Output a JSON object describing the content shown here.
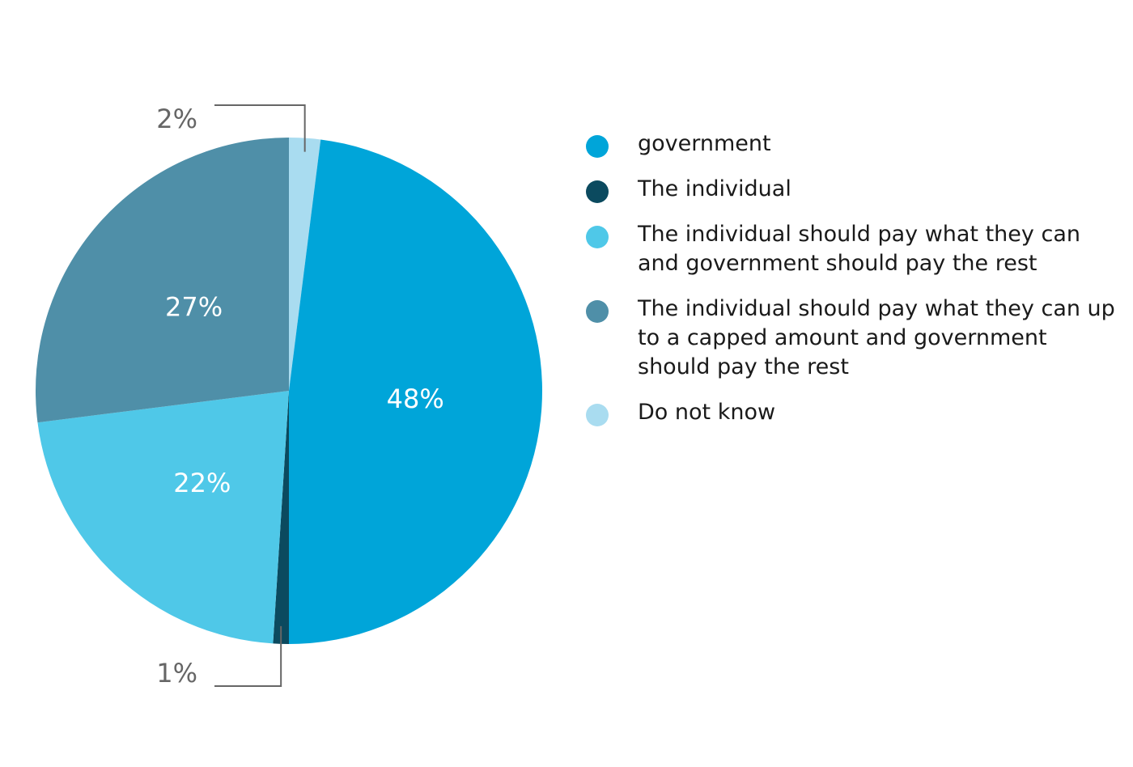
{
  "chart_data": {
    "type": "pie",
    "title": "",
    "start_angle_deg": 0,
    "direction": "clockwise",
    "slices": [
      {
        "label": "Do not know",
        "value": 2,
        "value_label": "2%",
        "color": "#a9dcf0",
        "label_placement": "outside-top"
      },
      {
        "label": "government",
        "value": 48,
        "value_label": "48%",
        "color": "#00a5d9",
        "label_placement": "inside"
      },
      {
        "label": "The individual",
        "value": 1,
        "value_label": "1%",
        "color": "#0b4a5f",
        "label_placement": "outside-bottom"
      },
      {
        "label": "The individual should pay what they can and government should pay the rest",
        "value": 22,
        "value_label": "22%",
        "color": "#4fc8e8",
        "label_placement": "inside"
      },
      {
        "label": "The individual should pay what they can up to a capped amount and government should pay the rest",
        "value": 27,
        "value_label": "27%",
        "color": "#4f8fa8",
        "label_placement": "inside"
      }
    ],
    "legend": {
      "placement": "right",
      "entries": [
        {
          "label": "government",
          "color": "#00a5d9"
        },
        {
          "label": "The individual",
          "color": "#0b4a5f"
        },
        {
          "label": "The individual should pay what they can and government should pay the rest",
          "color": "#4fc8e8"
        },
        {
          "label": "The individual should pay what they can up to a capped amount and government should pay the rest",
          "color": "#4f8fa8"
        },
        {
          "label": "Do not know",
          "color": "#a9dcf0"
        }
      ]
    },
    "inside_label_color": "#ffffff",
    "outside_label_color": "#666666",
    "leader_line_color": "#666666"
  }
}
